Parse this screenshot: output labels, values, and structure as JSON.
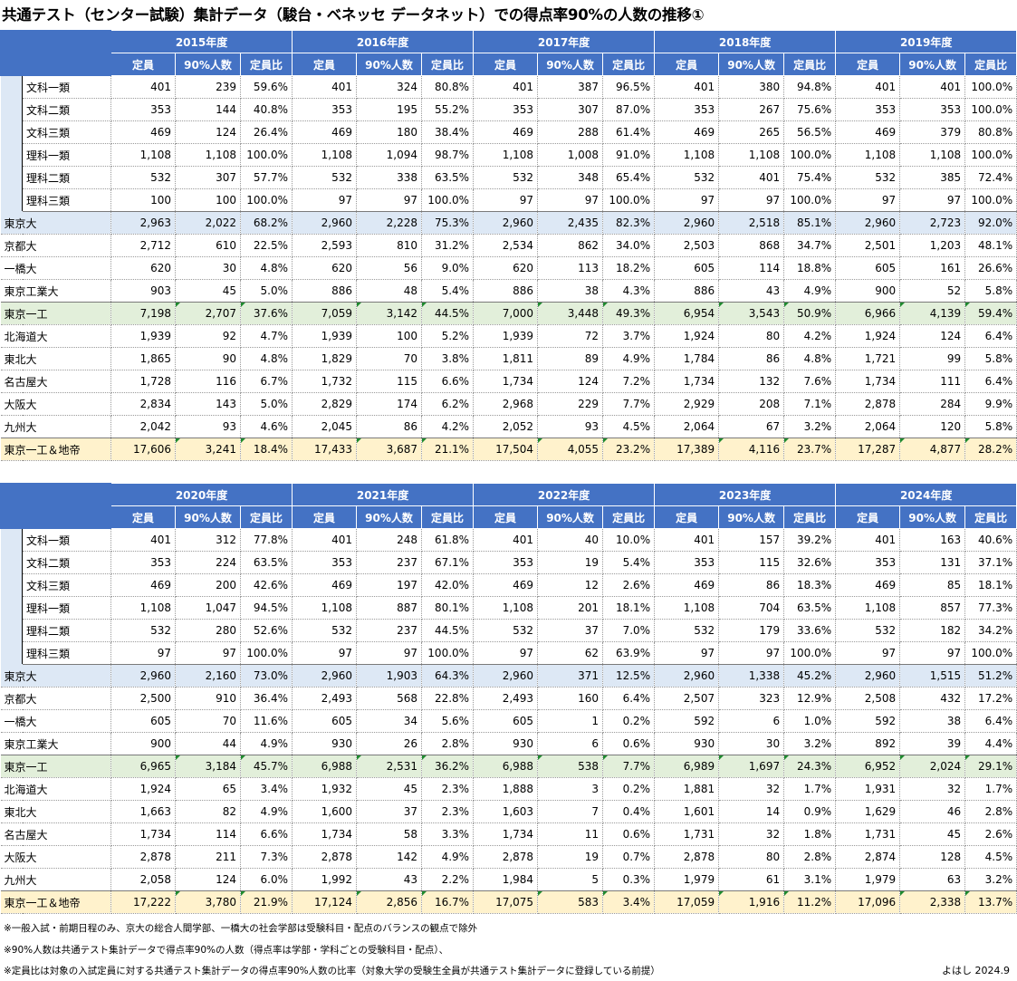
{
  "title": "共通テスト（センター試験）集計データ（駿台・ベネッセ データネット）での得点率90%の人数の推移①",
  "col_headers": [
    "定員",
    "90%人数",
    "定員比"
  ],
  "row_names": [
    "文科一類",
    "文科二類",
    "文科三類",
    "理科一類",
    "理科二類",
    "理科三類",
    "東京大",
    "京都大",
    "一橋大",
    "東京工業大",
    "東京一工",
    "北海道大",
    "東北大",
    "名古屋大",
    "大阪大",
    "九州大",
    "東京一工＆地帝"
  ],
  "tables": [
    {
      "years": [
        "2015年度",
        "2016年度",
        "2017年度",
        "2018年度",
        "2019年度"
      ],
      "rows": [
        [
          "401",
          "239",
          "59.6%",
          "401",
          "324",
          "80.8%",
          "401",
          "387",
          "96.5%",
          "401",
          "380",
          "94.8%",
          "401",
          "401",
          "100.0%"
        ],
        [
          "353",
          "144",
          "40.8%",
          "353",
          "195",
          "55.2%",
          "353",
          "307",
          "87.0%",
          "353",
          "267",
          "75.6%",
          "353",
          "353",
          "100.0%"
        ],
        [
          "469",
          "124",
          "26.4%",
          "469",
          "180",
          "38.4%",
          "469",
          "288",
          "61.4%",
          "469",
          "265",
          "56.5%",
          "469",
          "379",
          "80.8%"
        ],
        [
          "1,108",
          "1,108",
          "100.0%",
          "1,108",
          "1,094",
          "98.7%",
          "1,108",
          "1,008",
          "91.0%",
          "1,108",
          "1,108",
          "100.0%",
          "1,108",
          "1,108",
          "100.0%"
        ],
        [
          "532",
          "307",
          "57.7%",
          "532",
          "338",
          "63.5%",
          "532",
          "348",
          "65.4%",
          "532",
          "401",
          "75.4%",
          "532",
          "385",
          "72.4%"
        ],
        [
          "100",
          "100",
          "100.0%",
          "97",
          "97",
          "100.0%",
          "97",
          "97",
          "100.0%",
          "97",
          "97",
          "100.0%",
          "97",
          "97",
          "100.0%"
        ],
        [
          "2,963",
          "2,022",
          "68.2%",
          "2,960",
          "2,228",
          "75.3%",
          "2,960",
          "2,435",
          "82.3%",
          "2,960",
          "2,518",
          "85.1%",
          "2,960",
          "2,723",
          "92.0%"
        ],
        [
          "2,712",
          "610",
          "22.5%",
          "2,593",
          "810",
          "31.2%",
          "2,534",
          "862",
          "34.0%",
          "2,503",
          "868",
          "34.7%",
          "2,501",
          "1,203",
          "48.1%"
        ],
        [
          "620",
          "30",
          "4.8%",
          "620",
          "56",
          "9.0%",
          "620",
          "113",
          "18.2%",
          "605",
          "114",
          "18.8%",
          "605",
          "161",
          "26.6%"
        ],
        [
          "903",
          "45",
          "5.0%",
          "886",
          "48",
          "5.4%",
          "886",
          "38",
          "4.3%",
          "886",
          "43",
          "4.9%",
          "900",
          "52",
          "5.8%"
        ],
        [
          "7,198",
          "2,707",
          "37.6%",
          "7,059",
          "3,142",
          "44.5%",
          "7,000",
          "3,448",
          "49.3%",
          "6,954",
          "3,543",
          "50.9%",
          "6,966",
          "4,139",
          "59.4%"
        ],
        [
          "1,939",
          "92",
          "4.7%",
          "1,939",
          "100",
          "5.2%",
          "1,939",
          "72",
          "3.7%",
          "1,924",
          "80",
          "4.2%",
          "1,924",
          "124",
          "6.4%"
        ],
        [
          "1,865",
          "90",
          "4.8%",
          "1,829",
          "70",
          "3.8%",
          "1,811",
          "89",
          "4.9%",
          "1,784",
          "86",
          "4.8%",
          "1,721",
          "99",
          "5.8%"
        ],
        [
          "1,728",
          "116",
          "6.7%",
          "1,732",
          "115",
          "6.6%",
          "1,734",
          "124",
          "7.2%",
          "1,734",
          "132",
          "7.6%",
          "1,734",
          "111",
          "6.4%"
        ],
        [
          "2,834",
          "143",
          "5.0%",
          "2,829",
          "174",
          "6.2%",
          "2,968",
          "229",
          "7.7%",
          "2,929",
          "208",
          "7.1%",
          "2,878",
          "284",
          "9.9%"
        ],
        [
          "2,042",
          "93",
          "4.6%",
          "2,045",
          "86",
          "4.2%",
          "2,052",
          "93",
          "4.5%",
          "2,064",
          "67",
          "3.2%",
          "2,064",
          "120",
          "5.8%"
        ],
        [
          "17,606",
          "3,241",
          "18.4%",
          "17,433",
          "3,687",
          "21.1%",
          "17,504",
          "4,055",
          "23.2%",
          "17,389",
          "4,116",
          "23.7%",
          "17,287",
          "4,877",
          "28.2%"
        ]
      ]
    },
    {
      "years": [
        "2020年度",
        "2021年度",
        "2022年度",
        "2023年度",
        "2024年度"
      ],
      "rows": [
        [
          "401",
          "312",
          "77.8%",
          "401",
          "248",
          "61.8%",
          "401",
          "40",
          "10.0%",
          "401",
          "157",
          "39.2%",
          "401",
          "163",
          "40.6%"
        ],
        [
          "353",
          "224",
          "63.5%",
          "353",
          "237",
          "67.1%",
          "353",
          "19",
          "5.4%",
          "353",
          "115",
          "32.6%",
          "353",
          "131",
          "37.1%"
        ],
        [
          "469",
          "200",
          "42.6%",
          "469",
          "197",
          "42.0%",
          "469",
          "12",
          "2.6%",
          "469",
          "86",
          "18.3%",
          "469",
          "85",
          "18.1%"
        ],
        [
          "1,108",
          "1,047",
          "94.5%",
          "1,108",
          "887",
          "80.1%",
          "1,108",
          "201",
          "18.1%",
          "1,108",
          "704",
          "63.5%",
          "1,108",
          "857",
          "77.3%"
        ],
        [
          "532",
          "280",
          "52.6%",
          "532",
          "237",
          "44.5%",
          "532",
          "37",
          "7.0%",
          "532",
          "179",
          "33.6%",
          "532",
          "182",
          "34.2%"
        ],
        [
          "97",
          "97",
          "100.0%",
          "97",
          "97",
          "100.0%",
          "97",
          "62",
          "63.9%",
          "97",
          "97",
          "100.0%",
          "97",
          "97",
          "100.0%"
        ],
        [
          "2,960",
          "2,160",
          "73.0%",
          "2,960",
          "1,903",
          "64.3%",
          "2,960",
          "371",
          "12.5%",
          "2,960",
          "1,338",
          "45.2%",
          "2,960",
          "1,515",
          "51.2%"
        ],
        [
          "2,500",
          "910",
          "36.4%",
          "2,493",
          "568",
          "22.8%",
          "2,493",
          "160",
          "6.4%",
          "2,507",
          "323",
          "12.9%",
          "2,508",
          "432",
          "17.2%"
        ],
        [
          "605",
          "70",
          "11.6%",
          "605",
          "34",
          "5.6%",
          "605",
          "1",
          "0.2%",
          "592",
          "6",
          "1.0%",
          "592",
          "38",
          "6.4%"
        ],
        [
          "900",
          "44",
          "4.9%",
          "930",
          "26",
          "2.8%",
          "930",
          "6",
          "0.6%",
          "930",
          "30",
          "3.2%",
          "892",
          "39",
          "4.4%"
        ],
        [
          "6,965",
          "3,184",
          "45.7%",
          "6,988",
          "2,531",
          "36.2%",
          "6,988",
          "538",
          "7.7%",
          "6,989",
          "1,697",
          "24.3%",
          "6,952",
          "2,024",
          "29.1%"
        ],
        [
          "1,924",
          "65",
          "3.4%",
          "1,932",
          "45",
          "2.3%",
          "1,888",
          "3",
          "0.2%",
          "1,881",
          "32",
          "1.7%",
          "1,931",
          "32",
          "1.7%"
        ],
        [
          "1,663",
          "82",
          "4.9%",
          "1,600",
          "37",
          "2.3%",
          "1,603",
          "7",
          "0.4%",
          "1,601",
          "14",
          "0.9%",
          "1,629",
          "46",
          "2.8%"
        ],
        [
          "1,734",
          "114",
          "6.6%",
          "1,734",
          "58",
          "3.3%",
          "1,734",
          "11",
          "0.6%",
          "1,731",
          "32",
          "1.8%",
          "1,731",
          "45",
          "2.6%"
        ],
        [
          "2,878",
          "211",
          "7.3%",
          "2,878",
          "142",
          "4.9%",
          "2,878",
          "19",
          "0.7%",
          "2,878",
          "80",
          "2.8%",
          "2,874",
          "128",
          "4.5%"
        ],
        [
          "2,058",
          "124",
          "6.0%",
          "1,992",
          "43",
          "2.2%",
          "1,984",
          "5",
          "0.3%",
          "1,979",
          "61",
          "3.1%",
          "1,979",
          "63",
          "3.2%"
        ],
        [
          "17,222",
          "3,780",
          "21.9%",
          "17,124",
          "2,856",
          "16.7%",
          "17,075",
          "583",
          "3.4%",
          "17,059",
          "1,916",
          "11.2%",
          "17,096",
          "2,338",
          "13.7%"
        ]
      ]
    }
  ],
  "notes": [
    "※一般入試・前期日程のみ、京大の総合人間学部、一橋大の社会学部は受験科目・配点のバランスの観点で除外",
    "※90%人数は共通テスト集計データで得点率90%の人数（得点率は学部・学科ごとの受験科目・配点）、",
    "※定員比は対象の入試定員に対する共通テスト集計データの得点率90%人数の比率（対象大学の受験生全員が共通テスト集計データに登録している前提）"
  ],
  "signature": "よはし 2024.9",
  "colors": {
    "header": "#4472c4",
    "todai": "#dde8f5",
    "kokuitsu": "#e2efda",
    "chitei": "#fff2cc",
    "marker": "#1e8a2e"
  }
}
